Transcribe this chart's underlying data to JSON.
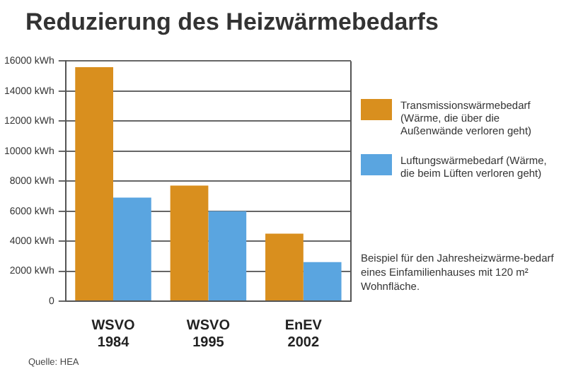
{
  "chart_data": {
    "type": "bar",
    "title": "Reduzierung des Heizwärmebedarfs",
    "categories": [
      "WSVO\n1984",
      "WSVO\n1995",
      "EnEV\n2002"
    ],
    "series": [
      {
        "name": "Transmissionswärmebedarf (Wärme, die über die Außenwände verloren geht)",
        "color": "#d98f1e",
        "values": [
          15600,
          7700,
          4500
        ]
      },
      {
        "name": "Luftungswärmebedarf (Wärme, die beim Lüften verloren geht)",
        "color": "#5aa5e0",
        "values": [
          6900,
          6000,
          2600
        ]
      }
    ],
    "ylim": [
      0,
      16000
    ],
    "yticks": [
      0,
      {
        "value": 2000,
        "label": "2000 kWh"
      },
      {
        "value": 4000,
        "label": "4000 kWh"
      },
      {
        "value": 6000,
        "label": "6000 kWh"
      },
      {
        "value": 8000,
        "label": "8000 kWh"
      },
      {
        "value": 10000,
        "label": "10000 kWh"
      },
      {
        "value": 12000,
        "label": "12000 kWh"
      },
      {
        "value": 14000,
        "label": "14000 kWh"
      },
      {
        "value": 16000,
        "label": "16000 kWh"
      }
    ],
    "grid": "y",
    "legend": "right",
    "annotations": [
      "Beispiel für den Jahresheizwärme-bedarf eines Einfamilienhauses mit 120 m² Wohnfläche.",
      "Quelle: HEA"
    ]
  }
}
